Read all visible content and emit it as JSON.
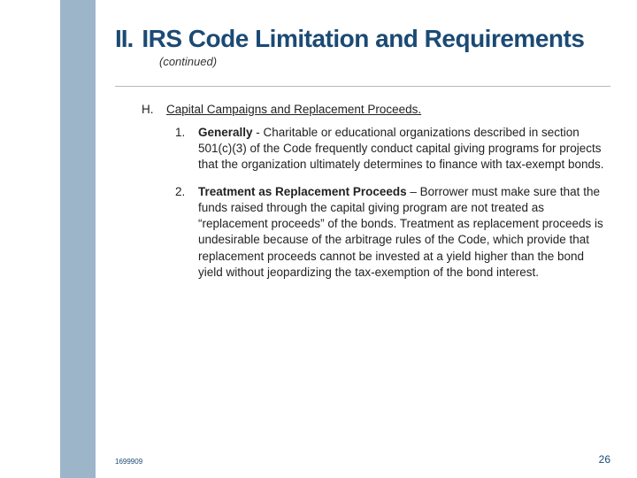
{
  "colors": {
    "sidebar": "#9cb5c9",
    "heading": "#1b4a74",
    "text": "#222222",
    "subheading": "#333333",
    "divider": "#b8b8b8",
    "footer": "#1b4a74",
    "background": "#ffffff"
  },
  "heading": {
    "number": "II.",
    "title": "IRS Code Limitation and Requirements",
    "continued": "(continued)"
  },
  "section": {
    "letter": "H.",
    "title": "Capital Campaigns and Replacement Proceeds."
  },
  "items": [
    {
      "num": "1.",
      "bold": "Generally",
      "sep": " - ",
      "text": "Charitable or educational organizations described in section 501(c)(3) of the Code frequently conduct capital giving programs for projects that the organization ultimately determines to finance with tax-exempt bonds."
    },
    {
      "num": "2.",
      "bold": "Treatment as Replacement Proceeds",
      "sep": " – ",
      "text": "Borrower must make sure that the funds raised through the capital giving program are not treated as “replacement proceeds” of the bonds. Treatment as replacement proceeds is undesirable because of the arbitrage rules of the Code, which provide that replacement proceeds cannot be invested at a yield higher than the bond yield without jeopardizing the tax-exemption of the bond interest."
    }
  ],
  "footer": {
    "doc_id": "1699909",
    "page_number": "26"
  }
}
